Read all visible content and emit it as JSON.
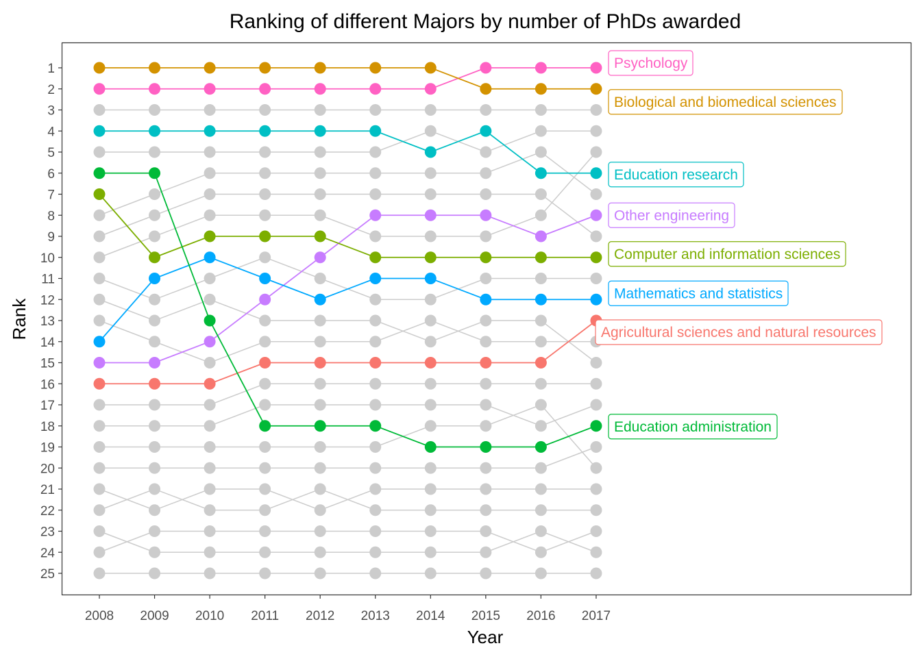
{
  "chart_data": {
    "type": "line",
    "title": "Ranking of different Majors by number of PhDs awarded",
    "xlabel": "Year",
    "ylabel": "Rank",
    "x": [
      2008,
      2009,
      2010,
      2011,
      2012,
      2013,
      2014,
      2015,
      2016,
      2017
    ],
    "ylim": [
      1,
      25
    ],
    "y_reversed": true,
    "y_ticks": [
      1,
      2,
      3,
      4,
      5,
      6,
      7,
      8,
      9,
      10,
      11,
      12,
      13,
      14,
      15,
      16,
      17,
      18,
      19,
      20,
      21,
      22,
      23,
      24,
      25
    ],
    "grid": false,
    "legend": "direct labels at right of lines",
    "background_series_color": "#cccccc",
    "highlighted_series": [
      {
        "name": "Psychology",
        "color": "#FF61C3",
        "values": [
          2,
          2,
          2,
          2,
          2,
          2,
          2,
          1,
          1,
          1
        ]
      },
      {
        "name": "Biological and biomedical sciences",
        "color": "#D39200",
        "values": [
          1,
          1,
          1,
          1,
          1,
          1,
          1,
          2,
          2,
          2
        ]
      },
      {
        "name": "Education research",
        "color": "#00BFC4",
        "values": [
          4,
          4,
          4,
          4,
          4,
          4,
          5,
          4,
          6,
          6
        ]
      },
      {
        "name": "Other engineering",
        "color": "#C77CFF",
        "values": [
          15,
          15,
          14,
          12,
          10,
          8,
          8,
          8,
          9,
          8
        ]
      },
      {
        "name": "Computer and information sciences",
        "color": "#7CAE00",
        "values": [
          7,
          10,
          9,
          9,
          9,
          10,
          10,
          10,
          10,
          10
        ]
      },
      {
        "name": "Mathematics and statistics",
        "color": "#00A9FF",
        "values": [
          14,
          11,
          10,
          11,
          12,
          11,
          11,
          12,
          12,
          12
        ]
      },
      {
        "name": "Agricultural sciences and natural resources",
        "color": "#F8766D",
        "values": [
          16,
          16,
          16,
          15,
          15,
          15,
          15,
          15,
          15,
          13
        ]
      },
      {
        "name": "Education administration",
        "color": "#00BA38",
        "values": [
          6,
          6,
          13,
          18,
          18,
          18,
          19,
          19,
          19,
          18
        ]
      }
    ],
    "background_series": [
      {
        "values": [
          3,
          3,
          3,
          3,
          3,
          3,
          3,
          3,
          3,
          3
        ]
      },
      {
        "values": [
          5,
          5,
          5,
          5,
          5,
          5,
          4,
          5,
          4,
          4
        ]
      },
      {
        "values": [
          8,
          7,
          6,
          6,
          6,
          6,
          6,
          6,
          5,
          7
        ]
      },
      {
        "values": [
          9,
          8,
          7,
          7,
          7,
          7,
          7,
          7,
          7,
          9
        ]
      },
      {
        "values": [
          10,
          9,
          8,
          8,
          8,
          9,
          9,
          9,
          8,
          5
        ]
      },
      {
        "values": [
          11,
          12,
          11,
          10,
          11,
          12,
          12,
          11,
          11,
          11
        ]
      },
      {
        "values": [
          12,
          13,
          12,
          13,
          13,
          13,
          14,
          13,
          13,
          15
        ]
      },
      {
        "values": [
          13,
          14,
          15,
          14,
          14,
          14,
          13,
          14,
          14,
          14
        ]
      },
      {
        "values": [
          17,
          17,
          17,
          16,
          16,
          16,
          16,
          16,
          16,
          16
        ]
      },
      {
        "values": [
          18,
          18,
          18,
          17,
          17,
          17,
          17,
          17,
          18,
          17
        ]
      },
      {
        "values": [
          19,
          19,
          19,
          19,
          19,
          19,
          18,
          18,
          17,
          20
        ]
      },
      {
        "values": [
          20,
          20,
          20,
          20,
          20,
          20,
          20,
          20,
          20,
          19
        ]
      },
      {
        "values": [
          21,
          22,
          21,
          21,
          22,
          21,
          21,
          21,
          21,
          21
        ]
      },
      {
        "values": [
          22,
          21,
          22,
          22,
          21,
          22,
          22,
          22,
          22,
          22
        ]
      },
      {
        "values": [
          23,
          24,
          24,
          24,
          24,
          24,
          24,
          24,
          23,
          24
        ]
      },
      {
        "values": [
          24,
          23,
          23,
          23,
          23,
          23,
          23,
          23,
          24,
          23
        ]
      },
      {
        "values": [
          25,
          25,
          25,
          25,
          25,
          25,
          25,
          25,
          25,
          25
        ]
      }
    ]
  }
}
